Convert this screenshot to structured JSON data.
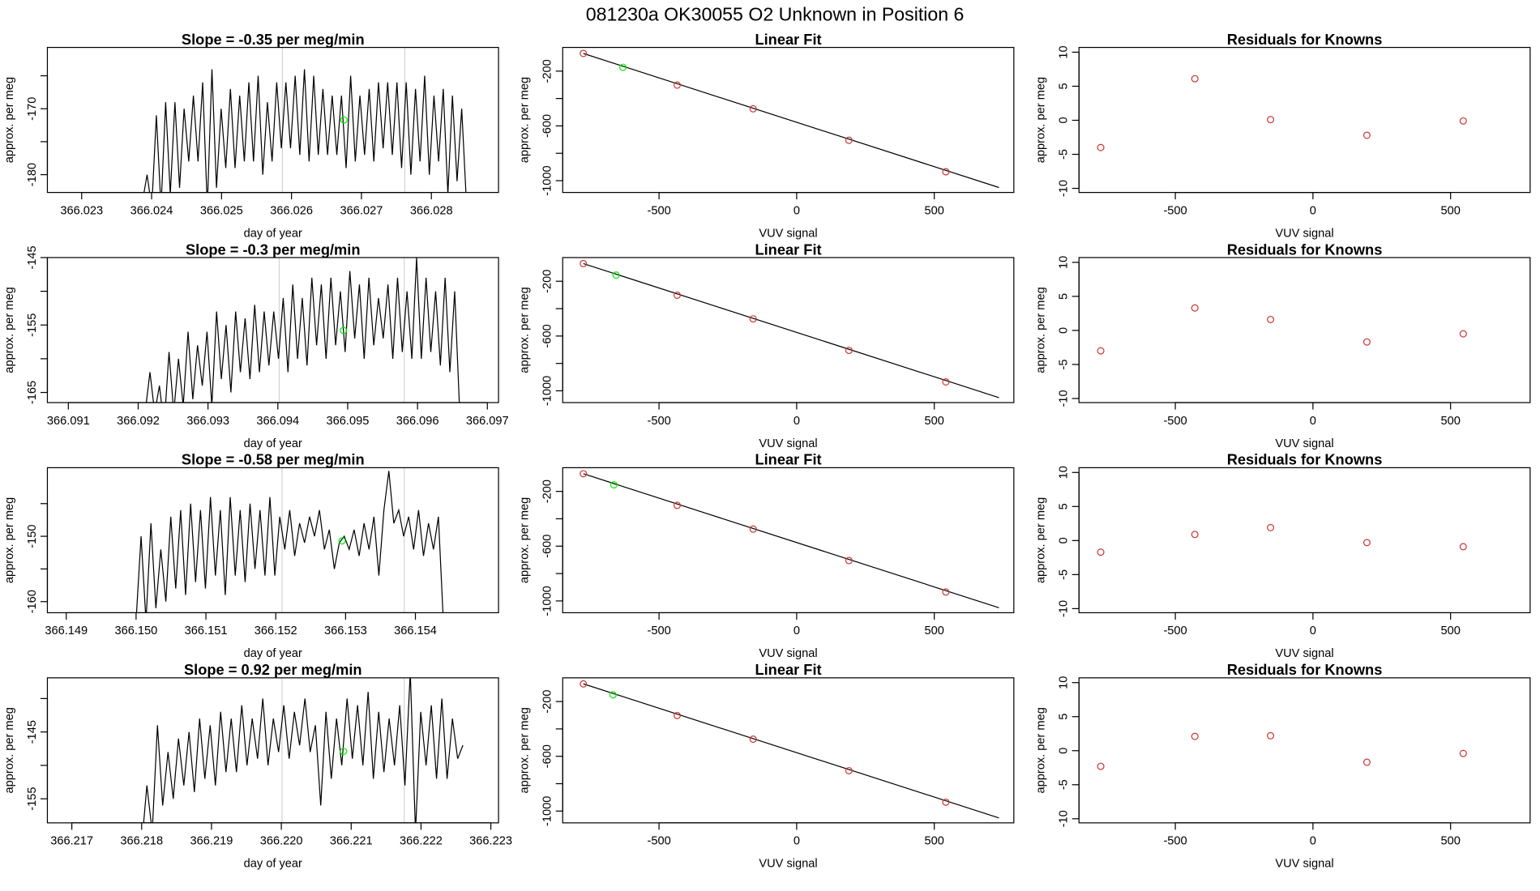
{
  "title": "081230a      OK30055    O2 Unknown in Position  6",
  "colors": {
    "line": "#000000",
    "known_point": "#cd3333",
    "unknown_point": "#00ee00",
    "marker_line": "#d3d3d3"
  },
  "chart_data": [
    {
      "type": "line",
      "row": 0,
      "col": 0,
      "title": "Slope =  -0.35  per meg/min",
      "xlabel": "day of year",
      "ylabel": "approx. per meg",
      "xlim": [
        366.02251,
        366.02896
      ],
      "ylim": [
        -182.7,
        -160.7
      ],
      "xticks": [
        "366.023",
        "366.024",
        "366.025",
        "366.026",
        "366.027",
        "366.028"
      ],
      "yticks": [
        -180,
        -175,
        -170,
        -165
      ],
      "ytick_labels": [
        "-180",
        "",
        "-170",
        ""
      ],
      "series_x_range": [
        366.02387,
        366.0285
      ],
      "series": [
        -184,
        -180,
        -185,
        -171,
        -185,
        -169,
        -183,
        -169,
        -182,
        -170,
        -178,
        -168,
        -178,
        -166,
        -185,
        -164,
        -182,
        -170,
        -179,
        -167,
        -179,
        -168,
        -178,
        -166,
        -178,
        -165,
        -180,
        -169,
        -178,
        -166,
        -176,
        -166,
        -176,
        -165,
        -177,
        -164,
        -178,
        -165,
        -177,
        -167,
        -177,
        -168,
        -177,
        -168,
        -179,
        -165,
        -178,
        -168,
        -177,
        -167,
        -178,
        -166,
        -176,
        -166,
        -177,
        -166,
        -179,
        -166,
        -180,
        -167,
        -178,
        -165,
        -180,
        -168,
        -178,
        -167,
        -183,
        -168,
        -181,
        -170,
        -184
      ],
      "marker_lines": [
        366.02587,
        366.02762
      ],
      "unknown_point": [
        366.02675,
        -171.7
      ]
    },
    {
      "type": "scatter",
      "row": 0,
      "col": 1,
      "title": "Linear Fit",
      "xlabel": "VUV signal",
      "ylabel": "approx. per meg",
      "xlim": [
        -850,
        789
      ],
      "ylim": [
        -1086,
        -27
      ],
      "xticks": [
        -500,
        0,
        500
      ],
      "yticks": [
        -1000,
        -800,
        -600,
        -400,
        -200
      ],
      "ytick_labels": [
        "-1000",
        "",
        "-600",
        "",
        "-200"
      ],
      "knowns": {
        "x": [
          -775,
          -434,
          -158,
          190,
          542
        ],
        "y": [
          -71,
          -302,
          -475,
          -705,
          -935
        ]
      },
      "unknown": [
        -631,
        -172
      ],
      "fit_line": [
        [
          -775,
          -71
        ],
        [
          735,
          -1050
        ]
      ]
    },
    {
      "type": "scatter",
      "row": 0,
      "col": 2,
      "title": "Residuals for Knowns",
      "xlabel": "VUV signal",
      "ylabel": "approx. per meg",
      "xlim": [
        -850,
        789
      ],
      "ylim": [
        -10.6,
        10.7
      ],
      "xticks": [
        -500,
        0,
        500
      ],
      "yticks": [
        -10,
        -5,
        0,
        5,
        10
      ],
      "x": [
        -771,
        -429,
        -154,
        196,
        546
      ],
      "y": [
        -4.0,
        6.1,
        0.1,
        -2.2,
        -0.1
      ]
    },
    {
      "type": "line",
      "row": 1,
      "col": 0,
      "title": "Slope =  -0.3  per meg/min",
      "xlabel": "day of year",
      "ylabel": "approx. per meg",
      "xlim": [
        366.0907,
        366.09716
      ],
      "ylim": [
        -166.5,
        -145
      ],
      "xticks": [
        "366.091",
        "366.092",
        "366.093",
        "366.094",
        "366.095",
        "366.096",
        "366.097"
      ],
      "yticks": [
        -165,
        -160,
        -155,
        -150,
        -145
      ],
      "ytick_labels": [
        "-165",
        "",
        "-155",
        "",
        "-145"
      ],
      "series_x_range": [
        366.0921,
        366.0966
      ],
      "series": [
        -168,
        -162,
        -168,
        -164,
        -170,
        -159,
        -168,
        -160,
        -167,
        -156,
        -166,
        -158,
        -164,
        -156,
        -167,
        -153,
        -163,
        -155,
        -165,
        -153,
        -162,
        -154,
        -163,
        -152,
        -162,
        -153,
        -161,
        -153,
        -160,
        -151,
        -162,
        -149,
        -160,
        -151,
        -161,
        -148,
        -158,
        -149,
        -160,
        -148,
        -158,
        -150,
        -159,
        -147,
        -157,
        -149,
        -160,
        -148,
        -158,
        -151,
        -157,
        -149,
        -160,
        -148,
        -159,
        -150,
        -160,
        -145,
        -160,
        -148,
        -159,
        -150,
        -161,
        -148,
        -162,
        -150,
        -167
      ],
      "marker_lines": [
        366.09402,
        366.09581
      ],
      "unknown_point": [
        366.09494,
        -155.8
      ]
    },
    {
      "type": "scatter",
      "row": 1,
      "col": 1,
      "title": "Linear Fit",
      "xlabel": "VUV signal",
      "ylabel": "approx. per meg",
      "xlim": [
        -850,
        789
      ],
      "ylim": [
        -1086,
        -27
      ],
      "xticks": [
        -500,
        0,
        500
      ],
      "yticks": [
        -1000,
        -800,
        -600,
        -400,
        -200
      ],
      "ytick_labels": [
        "-1000",
        "",
        "-600",
        "",
        "-200"
      ],
      "knowns": {
        "x": [
          -775,
          -434,
          -158,
          190,
          542
        ],
        "y": [
          -71,
          -302,
          -475,
          -705,
          -935
        ]
      },
      "unknown": [
        -656,
        -155
      ],
      "fit_line": [
        [
          -775,
          -71
        ],
        [
          735,
          -1050
        ]
      ]
    },
    {
      "type": "scatter",
      "row": 1,
      "col": 2,
      "title": "Residuals for Knowns",
      "xlabel": "VUV signal",
      "ylabel": "approx. per meg",
      "xlim": [
        -850,
        789
      ],
      "ylim": [
        -10.6,
        10.7
      ],
      "xticks": [
        -500,
        0,
        500
      ],
      "yticks": [
        -10,
        -5,
        0,
        5,
        10
      ],
      "x": [
        -771,
        -429,
        -154,
        196,
        546
      ],
      "y": [
        -3.0,
        3.3,
        1.6,
        -1.7,
        -0.5
      ]
    },
    {
      "type": "line",
      "row": 2,
      "col": 0,
      "title": "Slope =  -0.58  per meg/min",
      "xlabel": "day of year",
      "ylabel": "approx. per meg",
      "xlim": [
        366.14873,
        366.15519
      ],
      "ylim": [
        -161.7,
        -139.5
      ],
      "xticks": [
        "366.149",
        "366.150",
        "366.151",
        "366.152",
        "366.153",
        "366.154"
      ],
      "yticks": [
        -160,
        -155,
        -150,
        -145
      ],
      "ytick_labels": [
        "-160",
        "",
        "-150",
        ""
      ],
      "series_x_range": [
        366.15,
        366.1544
      ],
      "series": [
        -163,
        -150,
        -163,
        -148,
        -161,
        -152,
        -160,
        -147,
        -158,
        -146,
        -159,
        -145,
        -157,
        -146,
        -158,
        -144,
        -156,
        -146,
        -159,
        -144,
        -156,
        -146,
        -157,
        -145,
        -155,
        -146,
        -156,
        -144,
        -156,
        -147,
        -152,
        -146,
        -153,
        -148,
        -151,
        -147,
        -150,
        -146,
        -152,
        -149,
        -155,
        -151,
        -150,
        -152,
        -149,
        -153,
        -148,
        -152,
        -147,
        -156,
        -146,
        -140,
        -148,
        -146,
        -150,
        -147,
        -152,
        -146,
        -153,
        -148,
        -152,
        -147,
        -163
      ],
      "marker_lines": [
        366.15209,
        366.15384
      ],
      "unknown_point": [
        366.15295,
        -150.7
      ]
    },
    {
      "type": "scatter",
      "row": 2,
      "col": 1,
      "title": "Linear Fit",
      "xlabel": "VUV signal",
      "ylabel": "approx. per meg",
      "xlim": [
        -850,
        789
      ],
      "ylim": [
        -1086,
        -27
      ],
      "xticks": [
        -500,
        0,
        500
      ],
      "yticks": [
        -1000,
        -800,
        -600,
        -400,
        -200
      ],
      "ytick_labels": [
        "-1000",
        "",
        "-600",
        "",
        "-200"
      ],
      "knowns": {
        "x": [
          -775,
          -434,
          -158,
          190,
          542
        ],
        "y": [
          -71,
          -302,
          -475,
          -705,
          -935
        ]
      },
      "unknown": [
        -664,
        -152
      ],
      "fit_line": [
        [
          -775,
          -71
        ],
        [
          735,
          -1050
        ]
      ]
    },
    {
      "type": "scatter",
      "row": 2,
      "col": 2,
      "title": "Residuals for Knowns",
      "xlabel": "VUV signal",
      "ylabel": "approx. per meg",
      "xlim": [
        -850,
        789
      ],
      "ylim": [
        -10.6,
        10.7
      ],
      "xticks": [
        -500,
        0,
        500
      ],
      "yticks": [
        -10,
        -5,
        0,
        5,
        10
      ],
      "x": [
        -771,
        -429,
        -154,
        196,
        546
      ],
      "y": [
        -1.7,
        0.9,
        1.9,
        -0.3,
        -0.9
      ]
    },
    {
      "type": "line",
      "row": 3,
      "col": 0,
      "title": "Slope =  0.92  per meg/min",
      "xlabel": "day of year",
      "ylabel": "approx. per meg",
      "xlim": [
        366.21665,
        366.22311
      ],
      "ylim": [
        -158.6,
        -136.9
      ],
      "xticks": [
        "366.217",
        "366.218",
        "366.219",
        "366.220",
        "366.221",
        "366.222",
        "366.223"
      ],
      "yticks": [
        -155,
        -150,
        -145,
        -140
      ],
      "ytick_labels": [
        "-155",
        "",
        "-145",
        ""
      ],
      "series_x_range": [
        366.218,
        366.2226
      ],
      "series": [
        -162,
        -153,
        -160,
        -144,
        -156,
        -148,
        -155,
        -146,
        -153,
        -145,
        -154,
        -143,
        -152,
        -144,
        -153,
        -142,
        -151,
        -143,
        -151,
        -141,
        -150,
        -143,
        -149,
        -140,
        -150,
        -143,
        -148,
        -141,
        -149,
        -142,
        -147,
        -140,
        -148,
        -144,
        -156,
        -142,
        -152,
        -143,
        -150,
        -140,
        -149,
        -141,
        -150,
        -139,
        -152,
        -142,
        -151,
        -143,
        -150,
        -141,
        -153,
        -136,
        -160,
        -142,
        -150,
        -141,
        -152,
        -140,
        -152,
        -143,
        -149,
        -147
      ],
      "marker_lines": [
        366.22001,
        366.22176
      ],
      "unknown_point": [
        366.22089,
        -147.9
      ]
    },
    {
      "type": "scatter",
      "row": 3,
      "col": 1,
      "title": "Linear Fit",
      "xlabel": "VUV signal",
      "ylabel": "approx. per meg",
      "xlim": [
        -850,
        789
      ],
      "ylim": [
        -1086,
        -27
      ],
      "xticks": [
        -500,
        0,
        500
      ],
      "yticks": [
        -1000,
        -800,
        -600,
        -400,
        -200
      ],
      "ytick_labels": [
        "-1000",
        "",
        "-600",
        "",
        "-200"
      ],
      "knowns": {
        "x": [
          -775,
          -434,
          -158,
          190,
          542
        ],
        "y": [
          -71,
          -302,
          -475,
          -705,
          -935
        ]
      },
      "unknown": [
        -667,
        -151
      ],
      "fit_line": [
        [
          -775,
          -71
        ],
        [
          735,
          -1050
        ]
      ]
    },
    {
      "type": "scatter",
      "row": 3,
      "col": 2,
      "title": "Residuals for Knowns",
      "xlabel": "VUV signal",
      "ylabel": "approx. per meg",
      "xlim": [
        -850,
        789
      ],
      "ylim": [
        -10.6,
        10.7
      ],
      "xticks": [
        -500,
        0,
        500
      ],
      "yticks": [
        -10,
        -5,
        0,
        5,
        10
      ],
      "x": [
        -771,
        -429,
        -154,
        196,
        546
      ],
      "y": [
        -2.3,
        2.1,
        2.2,
        -1.7,
        -0.4
      ]
    }
  ]
}
